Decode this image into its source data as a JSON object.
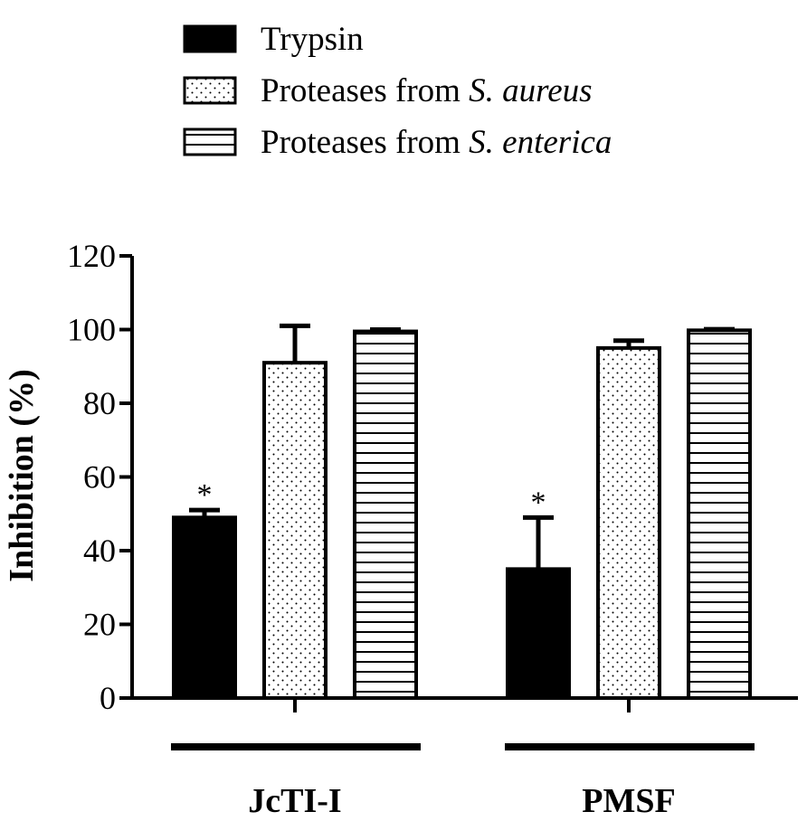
{
  "chart_data": {
    "type": "bar",
    "ylabel": "Inhibition (%)",
    "xlabel": "",
    "ylim": [
      0,
      120
    ],
    "yticks": [
      0,
      20,
      40,
      60,
      80,
      100,
      120
    ],
    "grid": false,
    "legend_position": "top-left",
    "categories": [
      "JcTI-I",
      "PMSF"
    ],
    "series": [
      {
        "name": "Trypsin",
        "name_parts": [
          {
            "text": "Trypsin",
            "italic": false
          }
        ],
        "pattern": "solid",
        "values": [
          49,
          35
        ],
        "errors": [
          2,
          14
        ],
        "annotations": [
          "*",
          "*"
        ]
      },
      {
        "name": "Proteases from S. aureus",
        "name_parts": [
          {
            "text": "Proteases from ",
            "italic": false
          },
          {
            "text": "S. aureus",
            "italic": true
          }
        ],
        "pattern": "dots",
        "values": [
          91,
          95
        ],
        "errors": [
          10,
          2
        ],
        "annotations": [
          "",
          ""
        ]
      },
      {
        "name": "Proteases from S. enterica",
        "name_parts": [
          {
            "text": "Proteases from ",
            "italic": false
          },
          {
            "text": "S. enterica",
            "italic": true
          }
        ],
        "pattern": "hlines",
        "values": [
          99.5,
          99.8
        ],
        "errors": [
          0.5,
          0.3
        ],
        "annotations": [
          "",
          ""
        ]
      }
    ]
  }
}
